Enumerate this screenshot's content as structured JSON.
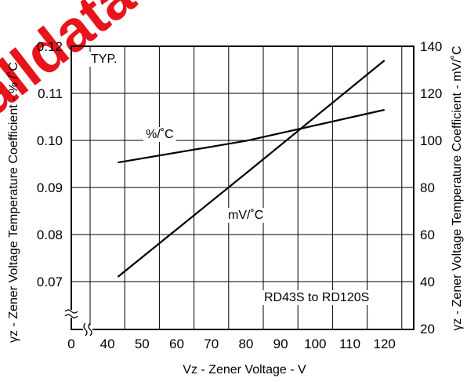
{
  "watermark": {
    "text": "alldatasheet",
    "color": "#e8141c"
  },
  "chart_data": {
    "type": "line",
    "xlabel": "Vz - Zener Voltage - V",
    "ylabel_left": "γz - Zener Voltage Temperature Coefficient - % /˚C",
    "ylabel_right": "γz - Zener Voltage Temperature Coefficient - mV/˚C",
    "x_ticks": [
      "0",
      "40",
      "50",
      "60",
      "70",
      "80",
      "90",
      "100",
      "110",
      "120"
    ],
    "y_left_ticks": [
      "0.12",
      "0.11",
      "0.10",
      "0.09",
      "0.08",
      "0.07"
    ],
    "y_right_ticks": [
      "140",
      "120",
      "100",
      "80",
      "60",
      "40",
      "20"
    ],
    "x_range": [
      35,
      128
    ],
    "y_left_range": [
      0.065,
      0.12
    ],
    "y_right_range": [
      20,
      140
    ],
    "grid": true,
    "annotations": {
      "typ": "TYP.",
      "range": "RD43S to RD120S"
    },
    "series": [
      {
        "name": "%/˚C",
        "axis": "left",
        "x": [
          43,
          80,
          120
        ],
        "y": [
          0.0953,
          0.0999,
          0.1065
        ]
      },
      {
        "name": "mV/˚C",
        "axis": "right",
        "x": [
          43,
          80,
          120
        ],
        "y": [
          42,
          86,
          134
        ]
      }
    ]
  }
}
